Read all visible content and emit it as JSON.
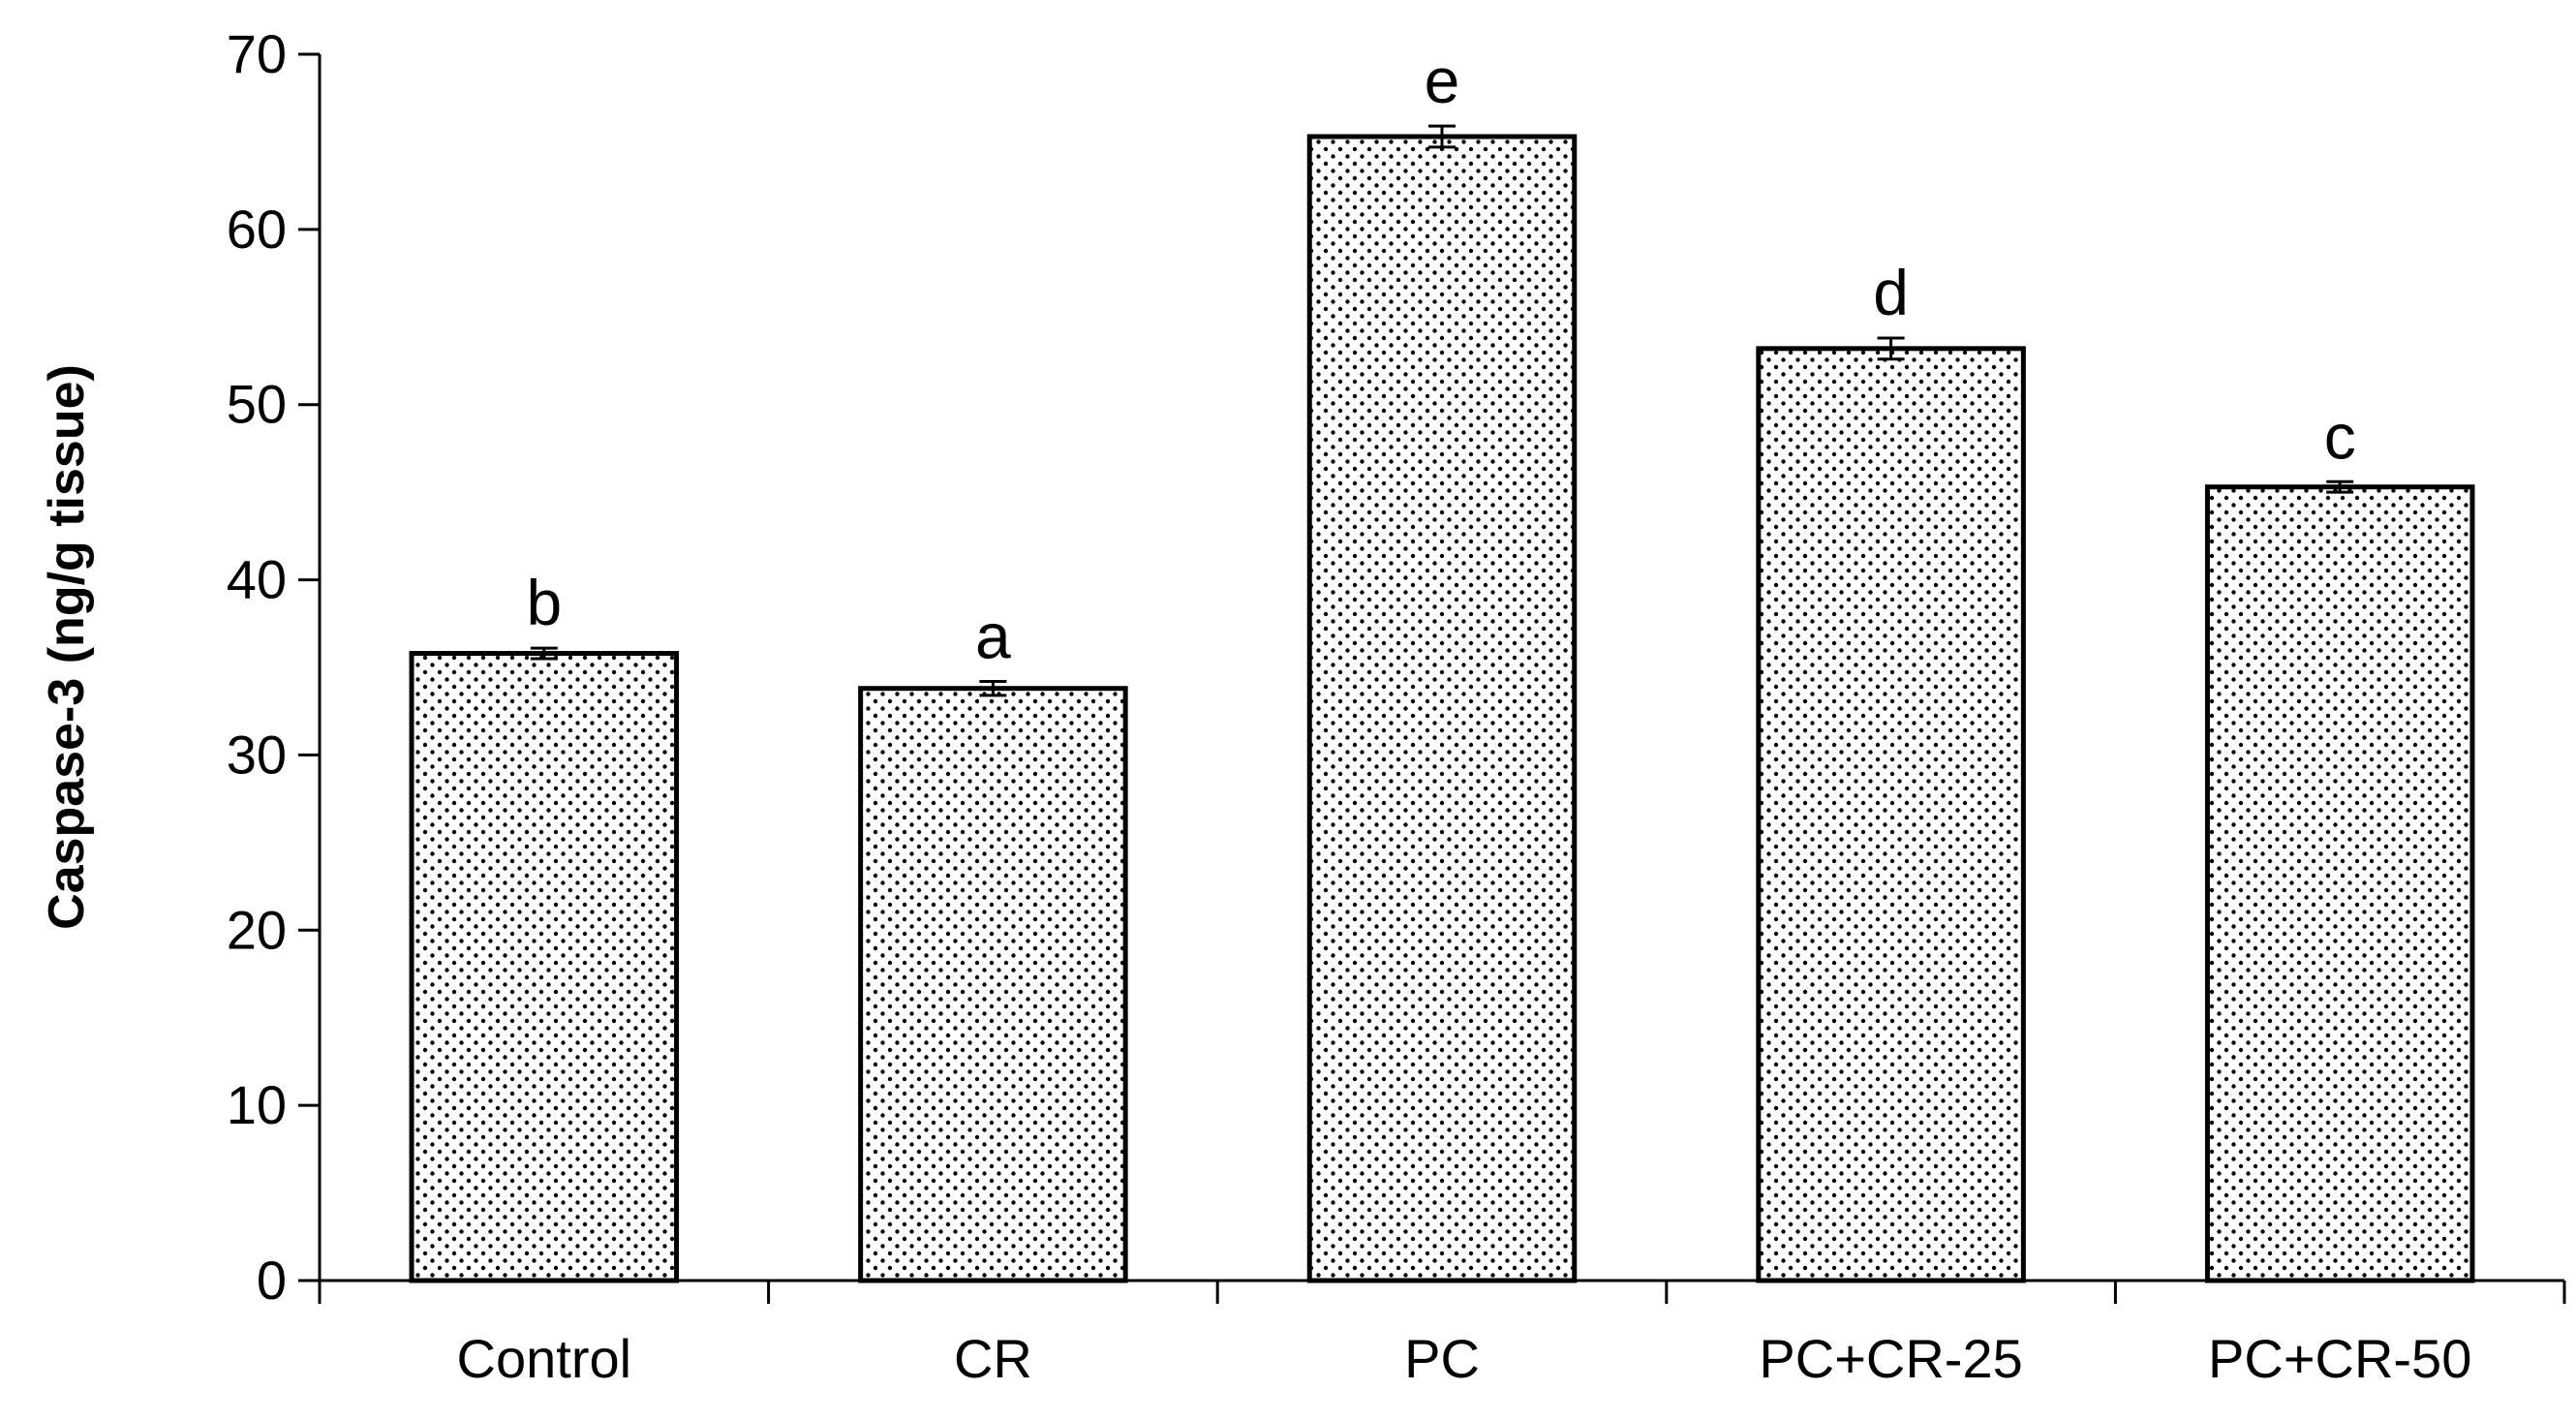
{
  "chart_data": {
    "type": "bar",
    "title": "",
    "xlabel": "",
    "ylabel": "Caspase-3 (ng/g tissue)",
    "ylim": [
      0,
      70
    ],
    "yticks": [
      0,
      10,
      20,
      30,
      40,
      50,
      60,
      70
    ],
    "grid": false,
    "legend": "none",
    "categories": [
      "Control",
      "CR",
      "PC",
      "PC+CR-25",
      "PC+CR-50"
    ],
    "values": [
      35.8,
      33.8,
      65.3,
      53.2,
      45.3
    ],
    "errors": [
      0.3,
      0.4,
      0.6,
      0.6,
      0.3
    ],
    "significance_labels": [
      "b",
      "a",
      "e",
      "d",
      "c"
    ],
    "bar_fill": "#ffffff",
    "bar_pattern_color": "#000000",
    "bar_stroke": "#000000"
  }
}
